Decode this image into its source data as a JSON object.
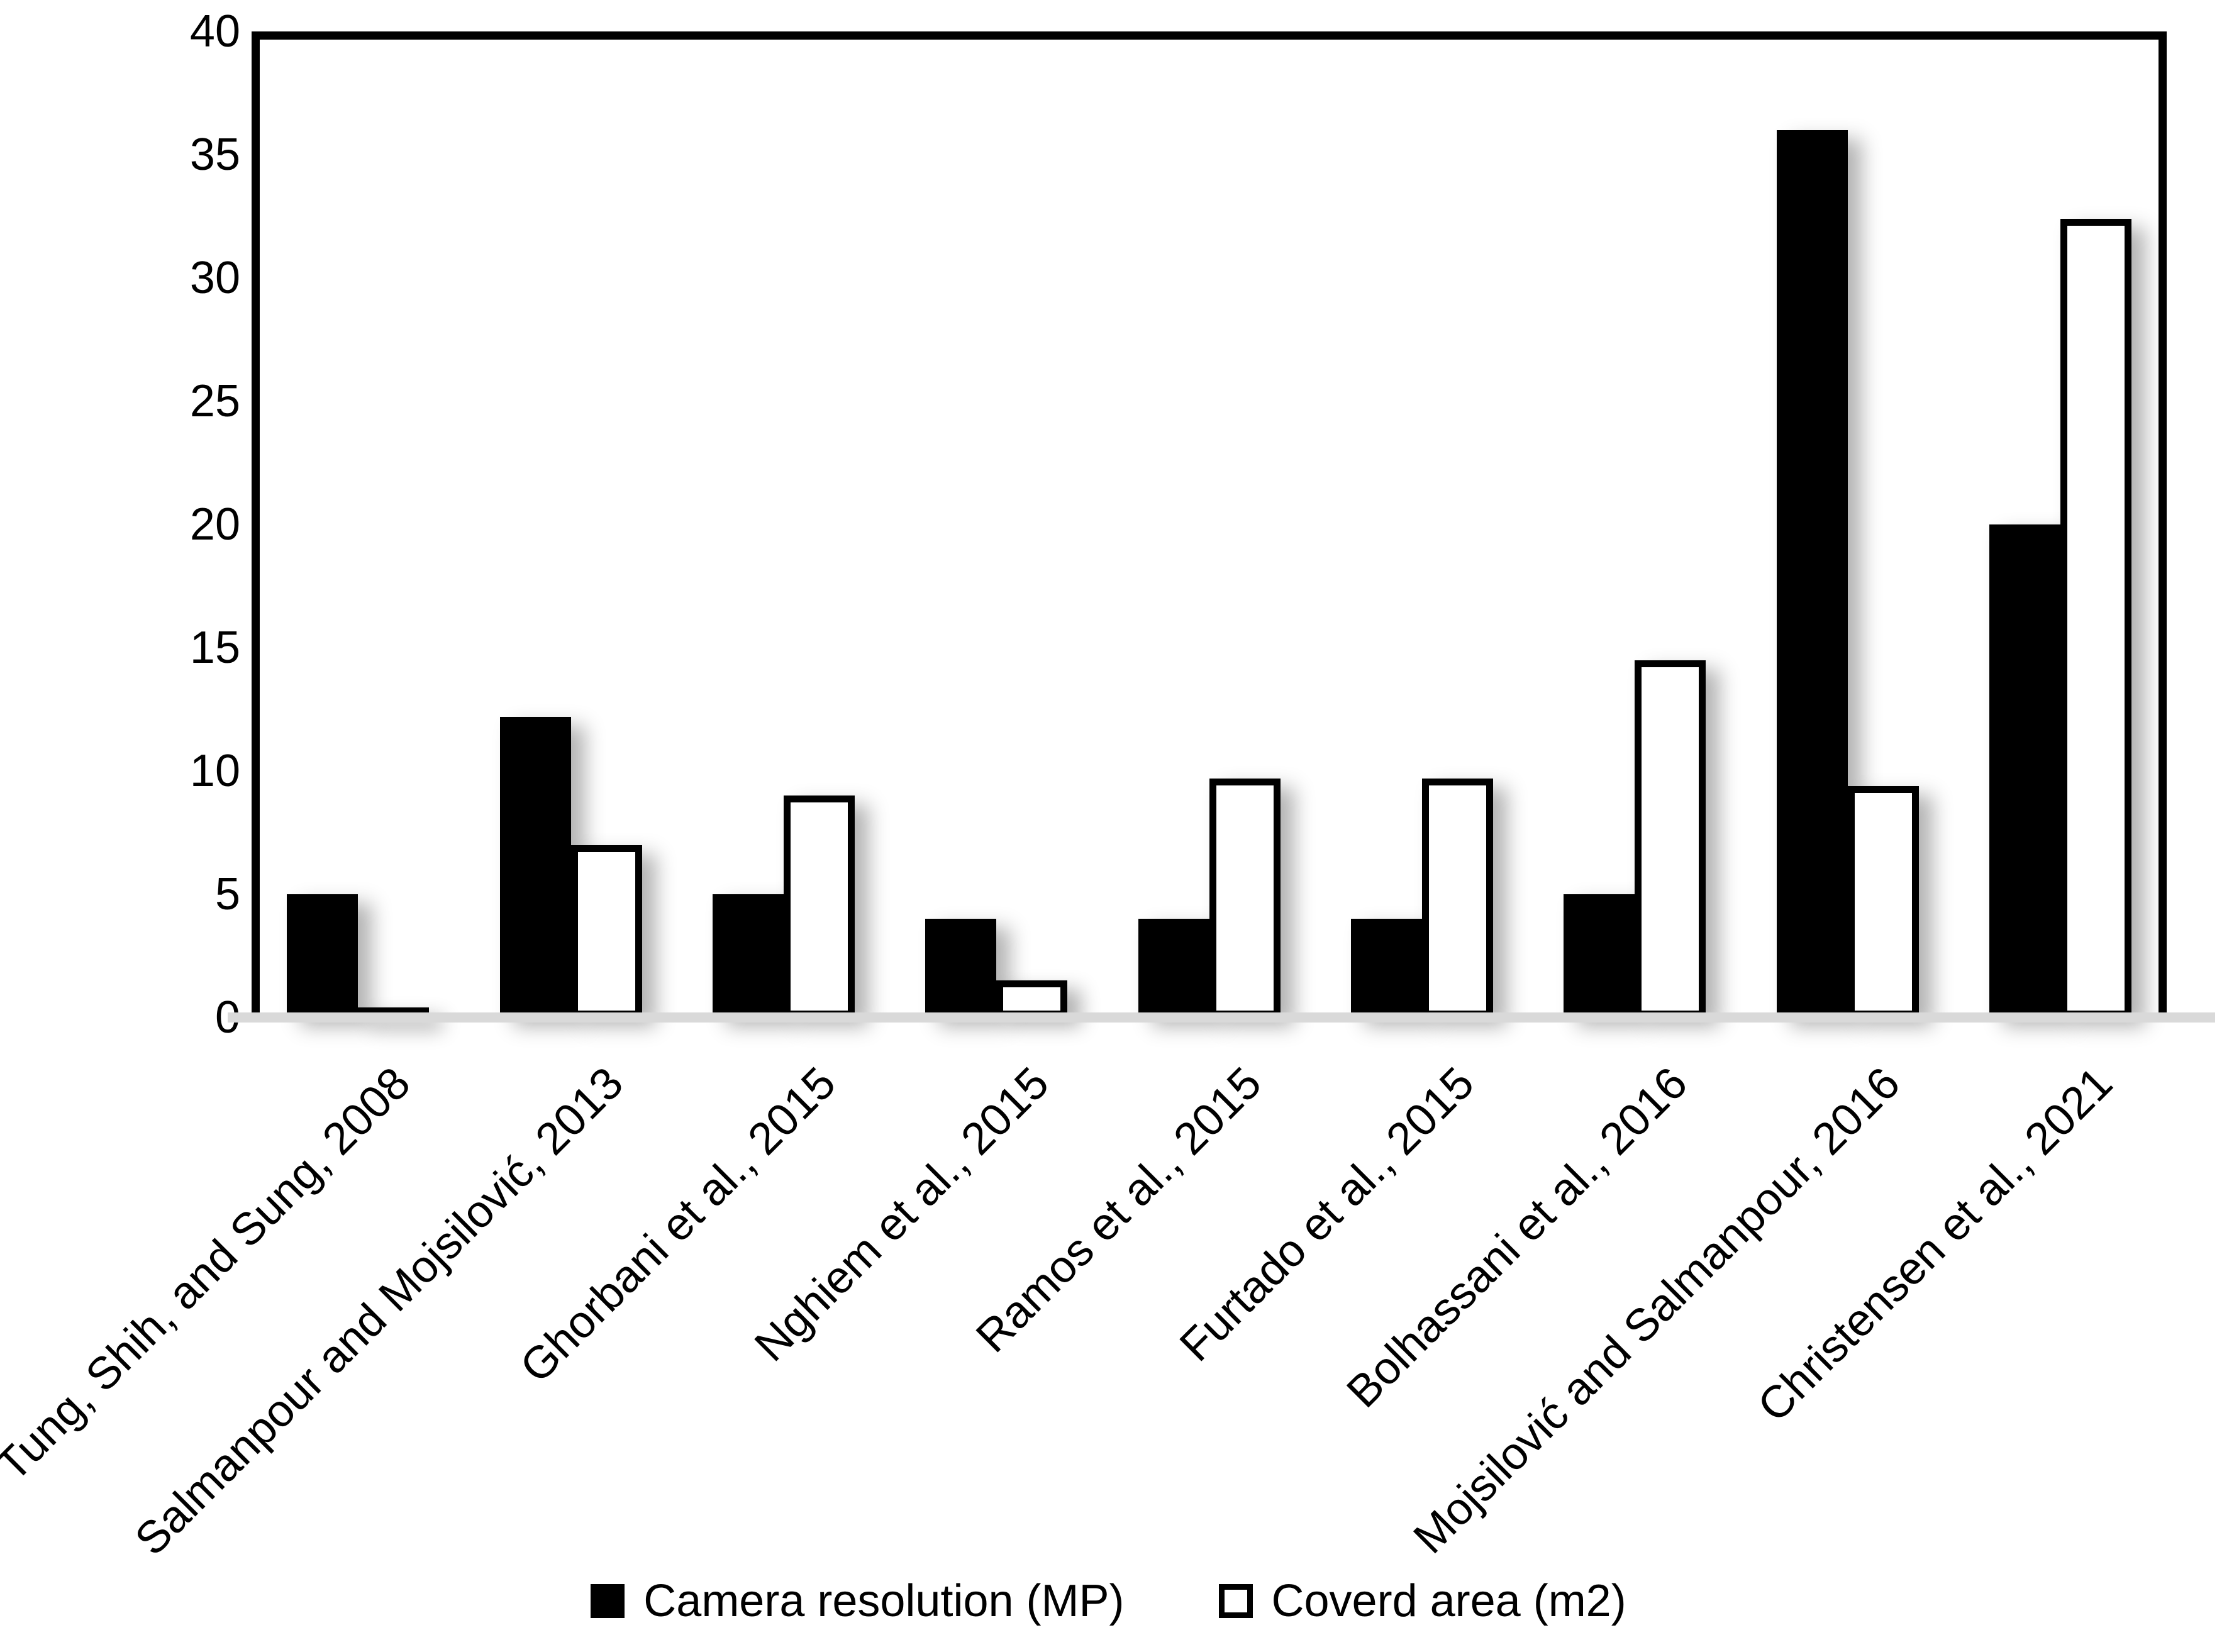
{
  "chart_data": {
    "type": "bar",
    "title": "",
    "xlabel": "",
    "ylabel": "",
    "categories": [
      "Tung, Shih, and Sung, 2008",
      "Salmanpour and Mojsilović, 2013",
      "Ghorbani et al., 2015",
      "Nghiem et al., 2015",
      "Ramos et al., 2015",
      "Furtado et al., 2015",
      "Bolhassani et al., 2016",
      "Mojsilović and Salmanpour, 2016",
      "Christensen et al., 2021"
    ],
    "series": [
      {
        "name": "Camera resolution (MP)",
        "swatch": "filled-black-square",
        "color": "#000000",
        "values": [
          5,
          12.2,
          5,
          4,
          4,
          4,
          5,
          36,
          20
        ]
      },
      {
        "name": "Coverd area (m2)",
        "swatch": "outlined-white-square",
        "color": "#ffffff",
        "outline": "#000000",
        "values": [
          0.2,
          7,
          9,
          1.5,
          9.7,
          9.7,
          14.5,
          9.4,
          32.4
        ]
      }
    ],
    "ylim": [
      0,
      40
    ],
    "yticks": [
      0,
      5,
      10,
      15,
      20,
      25,
      30,
      35,
      40
    ],
    "grid": false,
    "legend_position": "bottom",
    "axis_baseline_color": "#d9d9d9",
    "frame_color": "#000000",
    "x_label_rotation_deg": 45
  }
}
